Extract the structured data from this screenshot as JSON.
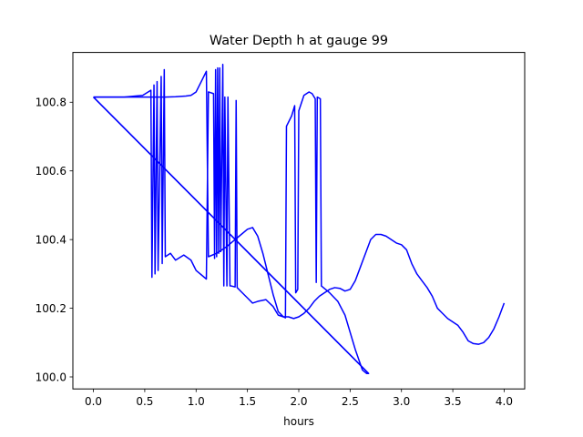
{
  "chart_data": {
    "type": "line",
    "title": "Water Depth h at gauge 99",
    "xlabel": "hours",
    "ylabel": "",
    "xlim": [
      -0.2,
      4.2
    ],
    "ylim": [
      99.965,
      100.945
    ],
    "grid": false,
    "x_ticks": [
      0.0,
      0.5,
      1.0,
      1.5,
      2.0,
      2.5,
      3.0,
      3.5,
      4.0
    ],
    "x_tick_labels": [
      "0.0",
      "0.5",
      "1.0",
      "1.5",
      "2.0",
      "2.5",
      "3.0",
      "3.5",
      "4.0"
    ],
    "y_ticks": [
      100.0,
      100.2,
      100.4,
      100.6,
      100.8
    ],
    "y_tick_labels": [
      "100.0",
      "100.2",
      "100.4",
      "100.6",
      "100.8"
    ],
    "series": [
      {
        "color": "#0000ff",
        "points": [
          [
            0.0,
            100.815
          ],
          [
            0.3,
            100.815
          ],
          [
            0.48,
            100.82
          ],
          [
            0.56,
            100.835
          ],
          [
            0.57,
            100.29
          ],
          [
            0.59,
            100.85
          ],
          [
            0.6,
            100.3
          ],
          [
            0.62,
            100.86
          ],
          [
            0.63,
            100.31
          ],
          [
            0.66,
            100.875
          ],
          [
            0.67,
            100.33
          ],
          [
            0.69,
            100.895
          ],
          [
            0.7,
            100.35
          ],
          [
            0.75,
            100.36
          ],
          [
            0.8,
            100.34
          ],
          [
            0.88,
            100.355
          ],
          [
            0.95,
            100.34
          ],
          [
            1.0,
            100.31
          ],
          [
            1.1,
            100.285
          ],
          [
            1.12,
            100.83
          ],
          [
            1.17,
            100.825
          ],
          [
            1.18,
            100.345
          ],
          [
            1.19,
            100.895
          ],
          [
            1.2,
            100.35
          ],
          [
            1.21,
            100.9
          ],
          [
            1.22,
            100.36
          ],
          [
            1.23,
            100.9
          ],
          [
            1.24,
            100.365
          ],
          [
            1.26,
            100.91
          ],
          [
            1.27,
            100.265
          ],
          [
            1.28,
            100.815
          ],
          [
            1.3,
            100.265
          ],
          [
            1.31,
            100.815
          ],
          [
            1.33,
            100.265
          ],
          [
            1.34,
            100.265
          ],
          [
            1.38,
            100.262
          ],
          [
            1.39,
            100.805
          ],
          [
            1.4,
            100.26
          ],
          [
            1.45,
            100.245
          ],
          [
            1.5,
            100.23
          ],
          [
            1.55,
            100.215
          ],
          [
            1.6,
            100.22
          ],
          [
            1.68,
            100.225
          ],
          [
            1.75,
            100.205
          ],
          [
            1.8,
            100.18
          ],
          [
            1.85,
            100.175
          ],
          [
            1.87,
            100.172
          ],
          [
            1.88,
            100.73
          ],
          [
            1.93,
            100.76
          ],
          [
            1.96,
            100.79
          ],
          [
            1.97,
            100.245
          ],
          [
            1.99,
            100.255
          ],
          [
            2.0,
            100.775
          ],
          [
            2.05,
            100.82
          ],
          [
            2.1,
            100.83
          ],
          [
            2.13,
            100.825
          ],
          [
            2.16,
            100.81
          ],
          [
            2.17,
            100.275
          ],
          [
            2.18,
            100.815
          ],
          [
            2.21,
            100.81
          ],
          [
            2.22,
            100.265
          ],
          [
            2.3,
            100.245
          ],
          [
            2.38,
            100.22
          ],
          [
            2.45,
            100.18
          ],
          [
            2.55,
            100.08
          ],
          [
            2.62,
            100.02
          ],
          [
            2.66,
            100.01
          ],
          [
            2.68,
            100.01
          ],
          [
            0.0,
            100.815
          ]
        ],
        "points2": [
          [
            0.0,
            100.815
          ],
          [
            2.68,
            100.01
          ]
        ],
        "points3": [
          [
            0.0,
            100.815
          ],
          [
            0.5,
            100.815
          ],
          [
            0.6,
            100.815
          ],
          [
            0.7,
            100.815
          ],
          [
            0.8,
            100.816
          ],
          [
            0.9,
            100.818
          ],
          [
            0.95,
            100.82
          ],
          [
            1.0,
            100.83
          ],
          [
            1.05,
            100.86
          ],
          [
            1.1,
            100.89
          ],
          [
            1.12,
            100.35
          ],
          [
            1.2,
            100.36
          ],
          [
            1.3,
            100.38
          ],
          [
            1.4,
            100.405
          ],
          [
            1.5,
            100.43
          ],
          [
            1.55,
            100.435
          ],
          [
            1.6,
            100.41
          ],
          [
            1.65,
            100.36
          ],
          [
            1.7,
            100.3
          ],
          [
            1.75,
            100.24
          ],
          [
            1.8,
            100.19
          ],
          [
            1.85,
            100.175
          ],
          [
            1.9,
            100.175
          ],
          [
            1.95,
            100.17
          ],
          [
            2.0,
            100.175
          ],
          [
            2.05,
            100.185
          ],
          [
            2.1,
            100.2
          ],
          [
            2.15,
            100.22
          ],
          [
            2.2,
            100.235
          ],
          [
            2.25,
            100.245
          ],
          [
            2.3,
            100.255
          ],
          [
            2.35,
            100.26
          ],
          [
            2.4,
            100.258
          ],
          [
            2.45,
            100.25
          ],
          [
            2.5,
            100.255
          ],
          [
            2.55,
            100.28
          ],
          [
            2.6,
            100.32
          ],
          [
            2.65,
            100.36
          ],
          [
            2.7,
            100.4
          ],
          [
            2.75,
            100.415
          ],
          [
            2.8,
            100.415
          ],
          [
            2.85,
            100.41
          ],
          [
            2.9,
            100.4
          ],
          [
            2.95,
            100.39
          ],
          [
            3.0,
            100.385
          ],
          [
            3.05,
            100.37
          ],
          [
            3.1,
            100.33
          ],
          [
            3.15,
            100.3
          ],
          [
            3.2,
            100.28
          ],
          [
            3.25,
            100.26
          ],
          [
            3.3,
            100.235
          ],
          [
            3.35,
            100.2
          ],
          [
            3.4,
            100.185
          ],
          [
            3.45,
            100.17
          ],
          [
            3.5,
            100.16
          ],
          [
            3.55,
            100.15
          ],
          [
            3.6,
            100.13
          ],
          [
            3.65,
            100.105
          ],
          [
            3.7,
            100.097
          ],
          [
            3.75,
            100.095
          ],
          [
            3.8,
            100.1
          ],
          [
            3.85,
            100.115
          ],
          [
            3.9,
            100.14
          ],
          [
            3.95,
            100.175
          ],
          [
            4.0,
            100.215
          ]
        ]
      }
    ]
  }
}
